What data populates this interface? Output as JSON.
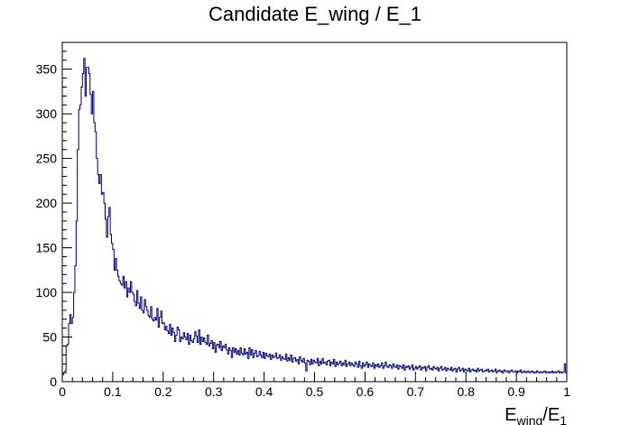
{
  "chart_data": {
    "type": "bar",
    "title": "Candidate E_wing / E_1",
    "xlabel": {
      "main": "E",
      "sub1": "wing",
      "slash": "/E",
      "sub2": "1"
    },
    "ylabel": "",
    "xlim": [
      0,
      1
    ],
    "ylim": [
      0,
      380
    ],
    "x_ticks": [
      0,
      0.1,
      0.2,
      0.3,
      0.4,
      0.5,
      0.6,
      0.7,
      0.8,
      0.9,
      1
    ],
    "x_tick_labels": [
      "0",
      "0.1",
      "0.2",
      "0.3",
      "0.4",
      "0.5",
      "0.6",
      "0.7",
      "0.8",
      "0.9",
      "1"
    ],
    "y_ticks": [
      0,
      50,
      100,
      150,
      200,
      250,
      300,
      350
    ],
    "y_tick_labels": [
      "0",
      "50",
      "100",
      "150",
      "200",
      "250",
      "300",
      "350"
    ],
    "grid": false,
    "legend": "none",
    "line_color": "#000080",
    "bin_width": 0.0025,
    "series": [
      {
        "values": [
          8,
          10,
          12,
          40,
          42,
          65,
          75,
          65,
          72,
          100,
          130,
          180,
          260,
          305,
          310,
          330,
          345,
          362,
          320,
          352,
          352,
          345,
          322,
          300,
          325,
          290,
          280,
          250,
          232,
          222,
          232,
          210,
          212,
          200,
          182,
          162,
          185,
          195,
          165,
          155,
          148,
          125,
          138,
          125,
          118,
          113,
          110,
          108,
          118,
          105,
          112,
          95,
          105,
          100,
          112,
          100,
          98,
          90,
          85,
          102,
          88,
          82,
          95,
          80,
          77,
          92,
          84,
          80,
          74,
          72,
          84,
          70,
          68,
          72,
          69,
          82,
          61,
          72,
          79,
          65,
          66,
          58,
          62,
          57,
          54,
          64,
          52,
          60,
          55,
          45,
          52,
          61,
          58,
          45,
          50,
          48,
          55,
          50,
          47,
          54,
          42,
          52,
          46,
          44,
          48,
          56,
          51,
          44,
          58,
          42,
          50,
          45,
          49,
          44,
          42,
          52,
          40,
          43,
          46,
          37,
          44,
          33,
          41,
          42,
          38,
          45,
          35,
          40,
          38,
          42,
          36,
          31,
          38,
          35,
          27,
          38,
          33,
          37,
          31,
          35,
          30,
          38,
          32,
          30,
          37,
          31,
          33,
          26,
          38,
          30,
          36,
          27,
          32,
          35,
          28,
          29,
          34,
          30,
          27,
          33,
          26,
          32,
          29,
          28,
          31,
          25,
          30,
          27,
          28,
          32,
          26,
          27,
          30,
          24,
          28,
          26,
          25,
          31,
          23,
          27,
          24,
          30,
          22,
          26,
          27,
          23,
          25,
          20,
          28,
          24,
          22,
          26,
          21,
          12,
          24,
          23,
          19,
          25,
          20,
          24,
          22,
          21,
          26,
          18,
          23,
          20,
          26,
          21,
          22,
          19,
          23,
          24,
          18,
          22,
          20,
          25,
          17,
          22,
          19,
          21,
          23,
          18,
          21,
          19,
          24,
          17,
          20,
          22,
          18,
          21,
          19,
          17,
          22,
          20,
          16,
          23,
          18,
          15,
          21,
          17,
          19,
          22,
          16,
          20,
          18,
          17,
          21,
          15,
          19,
          17,
          20,
          16,
          18,
          21,
          15,
          18,
          22,
          17,
          16,
          19,
          18,
          15,
          20,
          17,
          16,
          19,
          14,
          18,
          17,
          15,
          19,
          13,
          17,
          16,
          18,
          14,
          16,
          19,
          13,
          15,
          17,
          14,
          16,
          18,
          13,
          16,
          15,
          17,
          12,
          16,
          18,
          14,
          15,
          13,
          17,
          15,
          14,
          16,
          12,
          15,
          17,
          13,
          14,
          16,
          12,
          15,
          14,
          13,
          16,
          12,
          14,
          15,
          11,
          14,
          16,
          12,
          13,
          15,
          11,
          14,
          13,
          12,
          15,
          11,
          13,
          14,
          12,
          13,
          11,
          15,
          12,
          13,
          14,
          11,
          12,
          13,
          12,
          14,
          11,
          12,
          13,
          11,
          12,
          14,
          10,
          12,
          13,
          11,
          12,
          10,
          13,
          12,
          11,
          12,
          10,
          12,
          13,
          11,
          11,
          12,
          10,
          12,
          11,
          13,
          10,
          11,
          12,
          10,
          11,
          12,
          10,
          11,
          12,
          10,
          11,
          10,
          12,
          11,
          10,
          11,
          10,
          11,
          12,
          10,
          11,
          10,
          11,
          10,
          12,
          10,
          11,
          10,
          11,
          12,
          10,
          11,
          10,
          11,
          20,
          10
        ]
      }
    ]
  }
}
